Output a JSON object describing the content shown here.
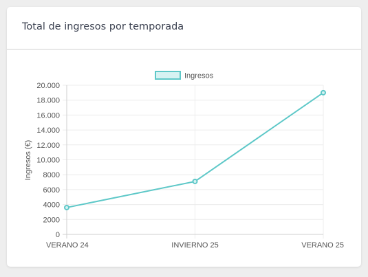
{
  "card": {
    "title": "Total de ingresos por temporada"
  },
  "chart_data": {
    "type": "line",
    "categories": [
      "VERANO 24",
      "INVIERNO 25",
      "VERANO 25"
    ],
    "series": [
      {
        "name": "Ingresos",
        "values": [
          3600,
          7100,
          19000
        ],
        "color": "#5ec8c8",
        "fill": "#d6f2f2"
      }
    ],
    "ylabel": "Ingresos (€)",
    "xlabel": "",
    "ylim": [
      0,
      20000
    ],
    "yticks": [
      0,
      2000,
      4000,
      6000,
      8000,
      10000,
      12000,
      14000,
      16000,
      18000,
      20000
    ],
    "ytick_labels": [
      "0",
      "2000",
      "4000",
      "6000",
      "8000",
      "10.000",
      "12.000",
      "14.000",
      "16.000",
      "18.000",
      "20.000"
    ],
    "grid": true,
    "legend_position": "top"
  }
}
